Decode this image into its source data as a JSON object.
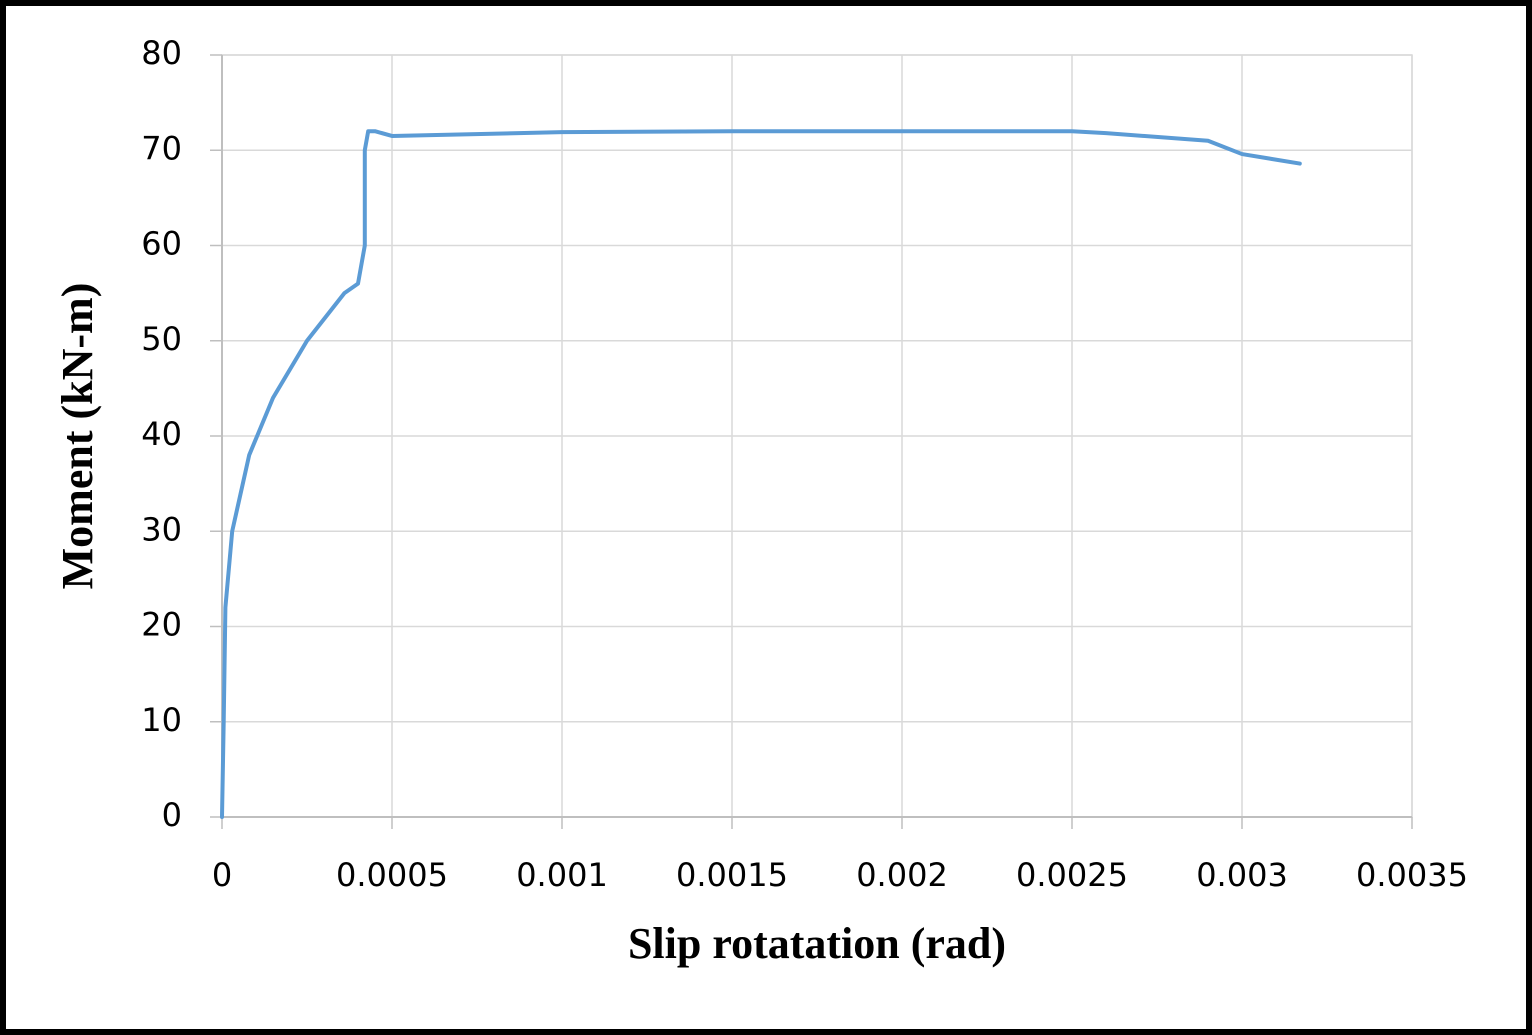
{
  "chart_data": {
    "type": "line",
    "x_label": "Slip rotatation (rad)",
    "y_label": "Moment (kN-m)",
    "series": [
      {
        "name": null,
        "color": "#5b9bd5",
        "x": [
          0,
          5e-06,
          1e-05,
          3e-05,
          8e-05,
          0.00015,
          0.00025,
          0.00036,
          0.0004,
          0.00042,
          0.00042,
          0.00043,
          0.00045,
          0.0005,
          0.001,
          0.0015,
          0.002,
          0.0025,
          0.0026,
          0.0029,
          0.003,
          0.00317
        ],
        "values": [
          0,
          10,
          22,
          30,
          38,
          44,
          50,
          55,
          56,
          60,
          70,
          72,
          72,
          71.5,
          71.9,
          72,
          72,
          72,
          71.8,
          71,
          69.6,
          68.6
        ]
      }
    ],
    "xlim": [
      0,
      0.0035
    ],
    "xticks": [
      0,
      0.0005,
      0.001,
      0.0015,
      0.002,
      0.0025,
      0.003,
      0.0035
    ],
    "ylim": [
      0,
      80
    ],
    "yticks": [
      0,
      10,
      20,
      30,
      40,
      50,
      60,
      70,
      80
    ],
    "grid": true
  }
}
